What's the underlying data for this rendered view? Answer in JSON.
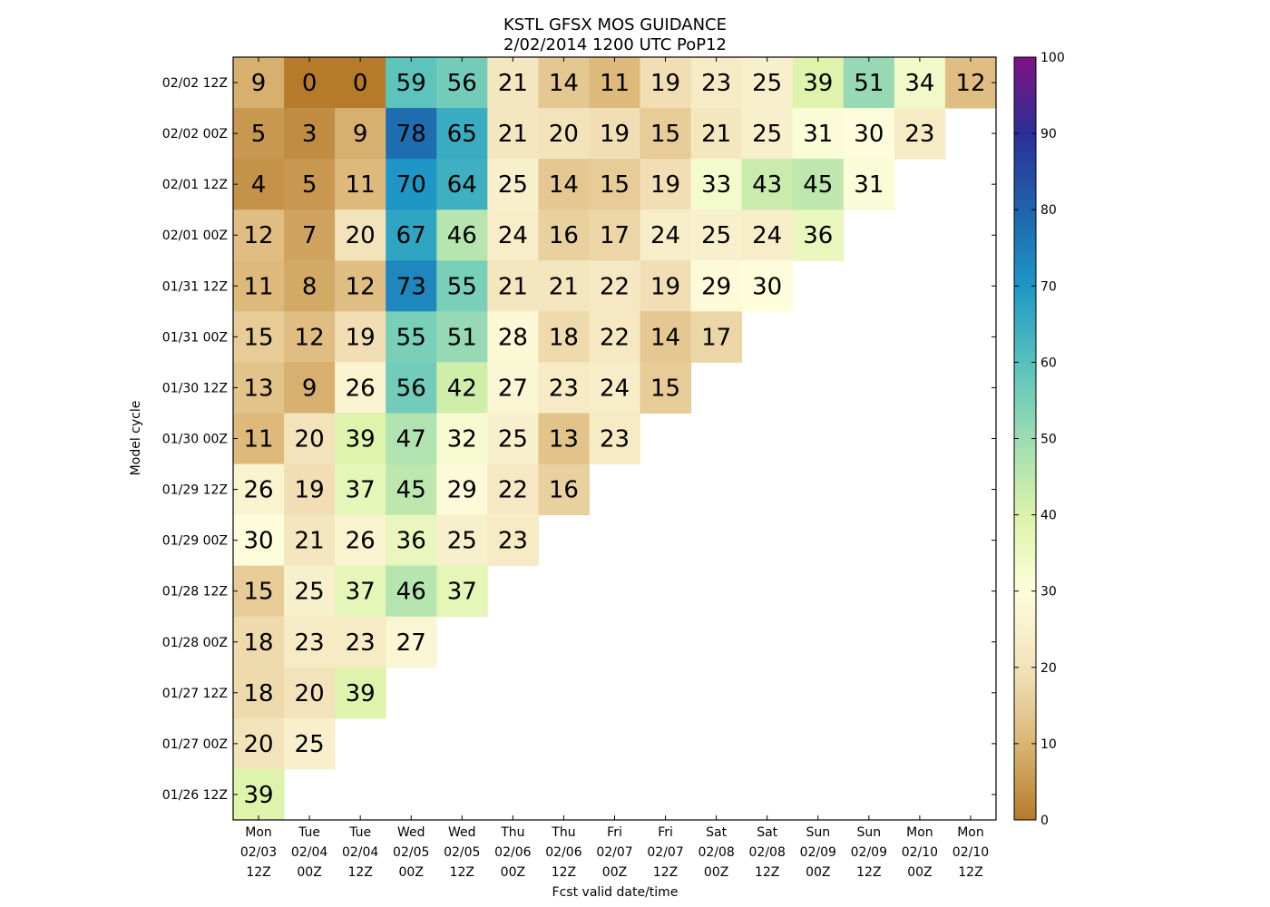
{
  "chart_data": {
    "type": "heatmap",
    "title": [
      "KSTL GFSX MOS GUIDANCE",
      "2/02/2014 1200 UTC PoP12"
    ],
    "xlabel": "Fcst valid date/time",
    "ylabel": "Model cycle",
    "x_categories": [
      [
        "Mon",
        "02/03",
        "12Z"
      ],
      [
        "Tue",
        "02/04",
        "00Z"
      ],
      [
        "Tue",
        "02/04",
        "12Z"
      ],
      [
        "Wed",
        "02/05",
        "00Z"
      ],
      [
        "Wed",
        "02/05",
        "12Z"
      ],
      [
        "Thu",
        "02/06",
        "00Z"
      ],
      [
        "Thu",
        "02/06",
        "12Z"
      ],
      [
        "Fri",
        "02/07",
        "00Z"
      ],
      [
        "Fri",
        "02/07",
        "12Z"
      ],
      [
        "Sat",
        "02/08",
        "00Z"
      ],
      [
        "Sat",
        "02/08",
        "12Z"
      ],
      [
        "Sun",
        "02/09",
        "00Z"
      ],
      [
        "Sun",
        "02/09",
        "12Z"
      ],
      [
        "Mon",
        "02/10",
        "00Z"
      ],
      [
        "Mon",
        "02/10",
        "12Z"
      ]
    ],
    "y_categories": [
      "02/02 12Z",
      "02/02 00Z",
      "02/01 12Z",
      "02/01 00Z",
      "01/31 12Z",
      "01/31 00Z",
      "01/30 12Z",
      "01/30 00Z",
      "01/29 12Z",
      "01/29 00Z",
      "01/28 12Z",
      "01/28 00Z",
      "01/27 12Z",
      "01/27 00Z",
      "01/26 12Z"
    ],
    "values": [
      [
        9,
        0,
        0,
        59,
        56,
        21,
        14,
        11,
        19,
        23,
        25,
        39,
        51,
        34,
        12
      ],
      [
        5,
        3,
        9,
        78,
        65,
        21,
        20,
        19,
        15,
        21,
        25,
        31,
        30,
        23,
        null
      ],
      [
        4,
        5,
        11,
        70,
        64,
        25,
        14,
        15,
        19,
        33,
        43,
        45,
        31,
        null,
        null
      ],
      [
        12,
        7,
        20,
        67,
        46,
        24,
        16,
        17,
        24,
        25,
        24,
        36,
        null,
        null,
        null
      ],
      [
        11,
        8,
        12,
        73,
        55,
        21,
        21,
        22,
        19,
        29,
        30,
        null,
        null,
        null,
        null
      ],
      [
        15,
        12,
        19,
        55,
        51,
        28,
        18,
        22,
        14,
        17,
        null,
        null,
        null,
        null,
        null
      ],
      [
        13,
        9,
        26,
        56,
        42,
        27,
        23,
        24,
        15,
        null,
        null,
        null,
        null,
        null,
        null
      ],
      [
        11,
        20,
        39,
        47,
        32,
        25,
        13,
        23,
        null,
        null,
        null,
        null,
        null,
        null,
        null
      ],
      [
        26,
        19,
        37,
        45,
        29,
        22,
        16,
        null,
        null,
        null,
        null,
        null,
        null,
        null,
        null
      ],
      [
        30,
        21,
        26,
        36,
        25,
        23,
        null,
        null,
        null,
        null,
        null,
        null,
        null,
        null,
        null
      ],
      [
        15,
        25,
        37,
        46,
        37,
        null,
        null,
        null,
        null,
        null,
        null,
        null,
        null,
        null,
        null
      ],
      [
        18,
        23,
        23,
        27,
        null,
        null,
        null,
        null,
        null,
        null,
        null,
        null,
        null,
        null,
        null
      ],
      [
        18,
        20,
        39,
        null,
        null,
        null,
        null,
        null,
        null,
        null,
        null,
        null,
        null,
        null,
        null
      ],
      [
        20,
        25,
        null,
        null,
        null,
        null,
        null,
        null,
        null,
        null,
        null,
        null,
        null,
        null,
        null
      ],
      [
        39,
        null,
        null,
        null,
        null,
        null,
        null,
        null,
        null,
        null,
        null,
        null,
        null,
        null,
        null
      ]
    ],
    "colorbar": {
      "min": 0,
      "max": 100,
      "ticks": [
        0,
        10,
        20,
        30,
        40,
        50,
        60,
        70,
        80,
        90,
        100
      ]
    },
    "colormap": [
      [
        0,
        "#b57a2a"
      ],
      [
        10,
        "#dbb575"
      ],
      [
        20,
        "#f3e3bb"
      ],
      [
        30,
        "#fdfddc"
      ],
      [
        40,
        "#dcf2a8"
      ],
      [
        50,
        "#9ddcb3"
      ],
      [
        60,
        "#55c1bd"
      ],
      [
        70,
        "#1e97c6"
      ],
      [
        80,
        "#1f63ac"
      ],
      [
        90,
        "#2b2f95"
      ],
      [
        100,
        "#7f1383"
      ]
    ]
  }
}
